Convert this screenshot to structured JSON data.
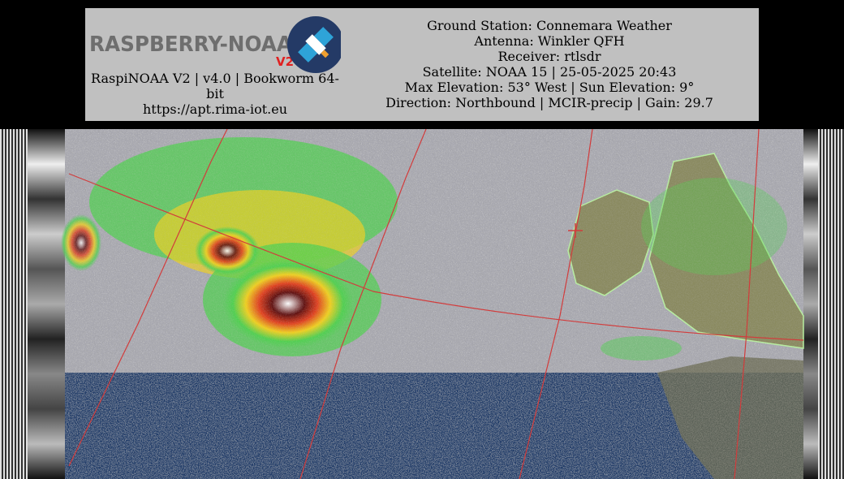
{
  "header": {
    "logo": {
      "wordmark": "RASPBERRY-NOAA",
      "version_tag": "V2",
      "icon": "satellite-icon"
    },
    "left_lines": [
      "RaspiNOAA V2 | v4.0 | Bookworm 64-bit",
      "https://apt.rima-iot.eu"
    ],
    "right_lines": [
      "Ground Station: Connemara Weather",
      "Antenna: Winkler QFH",
      "Receiver: rtlsdr",
      "Satellite: NOAA 15 | 25-05-2025 20:43",
      "Max Elevation: 53° West | Sun Elevation: 9°",
      "Direction: Northbound | MCIR-precip | Gain: 29.7"
    ]
  },
  "colors": {
    "header_bg": "#c0c0c0",
    "page_bg": "#000000",
    "logo_text": "#6e6e6e",
    "logo_v2": "#e02020",
    "logo_circle": "#243a66",
    "logo_satellite": "#2ea3d8",
    "grid_lines": "#d23c3c",
    "sea": "#26406b",
    "land": "#8a8a60",
    "cloud": "#a8a8b0"
  }
}
